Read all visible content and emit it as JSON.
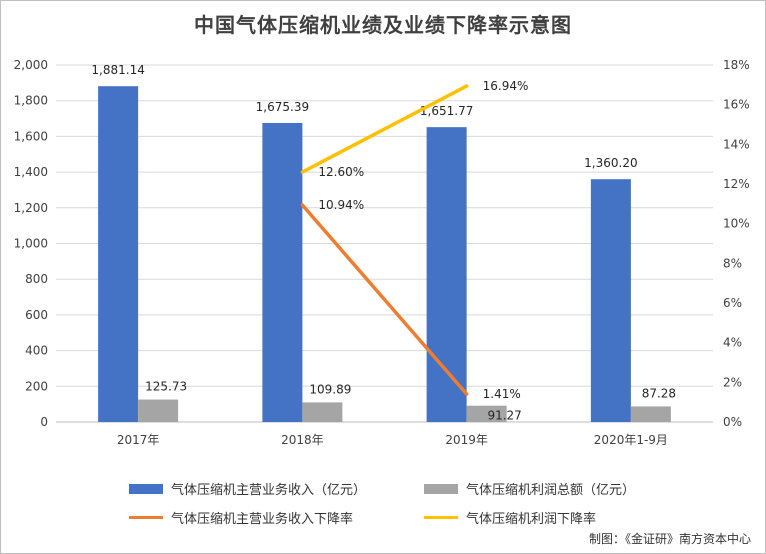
{
  "chart_data": {
    "type": "bar",
    "title": "中国气体压缩机业绩及业绩下降率示意图",
    "categories": [
      "2017年",
      "2018年",
      "2019年",
      "2020年1-9月"
    ],
    "y_left": {
      "ylim": [
        0,
        2000
      ],
      "ticks": [
        "0",
        "200",
        "400",
        "600",
        "800",
        "1,000",
        "1,200",
        "1,400",
        "1,600",
        "1,800",
        "2,000"
      ]
    },
    "y_right": {
      "ylim": [
        0,
        18
      ],
      "ticks": [
        "0%",
        "2%",
        "4%",
        "6%",
        "8%",
        "10%",
        "12%",
        "14%",
        "16%",
        "18%"
      ]
    },
    "grid": true,
    "legend_position": "bottom",
    "series": [
      {
        "name": "气体压缩机主营业务收入（亿元）",
        "type": "bar",
        "axis": "left",
        "color": "#4472c4",
        "values": [
          1881.14,
          1675.39,
          1651.77,
          1360.2
        ],
        "labels": [
          "1,881.14",
          "1,675.39",
          "1,651.77",
          "1,360.20"
        ]
      },
      {
        "name": "气体压缩机利润总额（亿元）",
        "type": "bar",
        "axis": "left",
        "color": "#a5a5a5",
        "values": [
          125.73,
          109.89,
          91.27,
          87.28
        ],
        "labels": [
          "125.73",
          "109.89",
          "91.27",
          "87.28"
        ]
      },
      {
        "name": "气体压缩机主营业务收入下降率",
        "type": "line",
        "axis": "right",
        "color": "#ed7d31",
        "values": [
          null,
          10.94,
          1.41,
          null
        ],
        "labels": [
          "",
          "10.94%",
          "1.41%",
          ""
        ]
      },
      {
        "name": "气体压缩机利润下降率",
        "type": "line",
        "axis": "right",
        "color": "#ffc000",
        "values": [
          null,
          12.6,
          16.94,
          null
        ],
        "labels": [
          "",
          "12.60%",
          "16.94%",
          ""
        ]
      }
    ]
  },
  "credit": "制图：《金证研》南方资本中心"
}
